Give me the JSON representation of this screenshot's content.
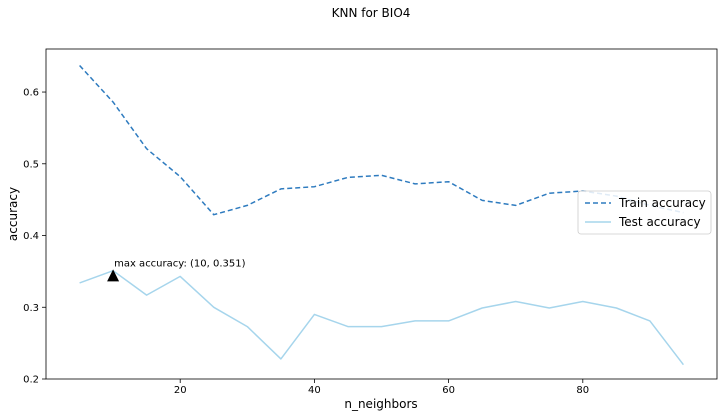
{
  "chart_data": {
    "type": "line",
    "title": "KNN for BIO4",
    "xlabel": "n_neighbors",
    "ylabel": "accuracy",
    "xlim": [
      0,
      100
    ],
    "ylim": [
      0.2,
      0.66
    ],
    "xticks": [
      20,
      40,
      60,
      80
    ],
    "yticks": [
      0.2,
      0.3,
      0.4,
      0.5,
      0.6
    ],
    "grid": false,
    "legend_position": "center-right",
    "x": [
      5,
      10,
      15,
      20,
      25,
      30,
      35,
      40,
      45,
      50,
      55,
      60,
      65,
      70,
      75,
      80,
      85,
      90,
      95
    ],
    "series": [
      {
        "name": "Train accuracy",
        "style": "dashed",
        "color": "#2e7bbf",
        "values": [
          0.637,
          0.586,
          0.521,
          0.482,
          0.429,
          0.442,
          0.465,
          0.468,
          0.481,
          0.484,
          0.472,
          0.475,
          0.449,
          0.442,
          0.459,
          0.462,
          0.455,
          0.442,
          0.432
        ]
      },
      {
        "name": "Test accuracy",
        "style": "solid",
        "color": "#a6d5ec",
        "values": [
          0.334,
          0.351,
          0.317,
          0.343,
          0.3,
          0.273,
          0.228,
          0.29,
          0.273,
          0.273,
          0.281,
          0.281,
          0.299,
          0.308,
          0.299,
          0.308,
          0.299,
          0.281,
          0.22
        ]
      }
    ],
    "annotation": {
      "text": "max accuracy: (10, 0.351)",
      "x": 10,
      "y": 0.351,
      "marker": "triangle",
      "marker_y": 0.343
    }
  }
}
